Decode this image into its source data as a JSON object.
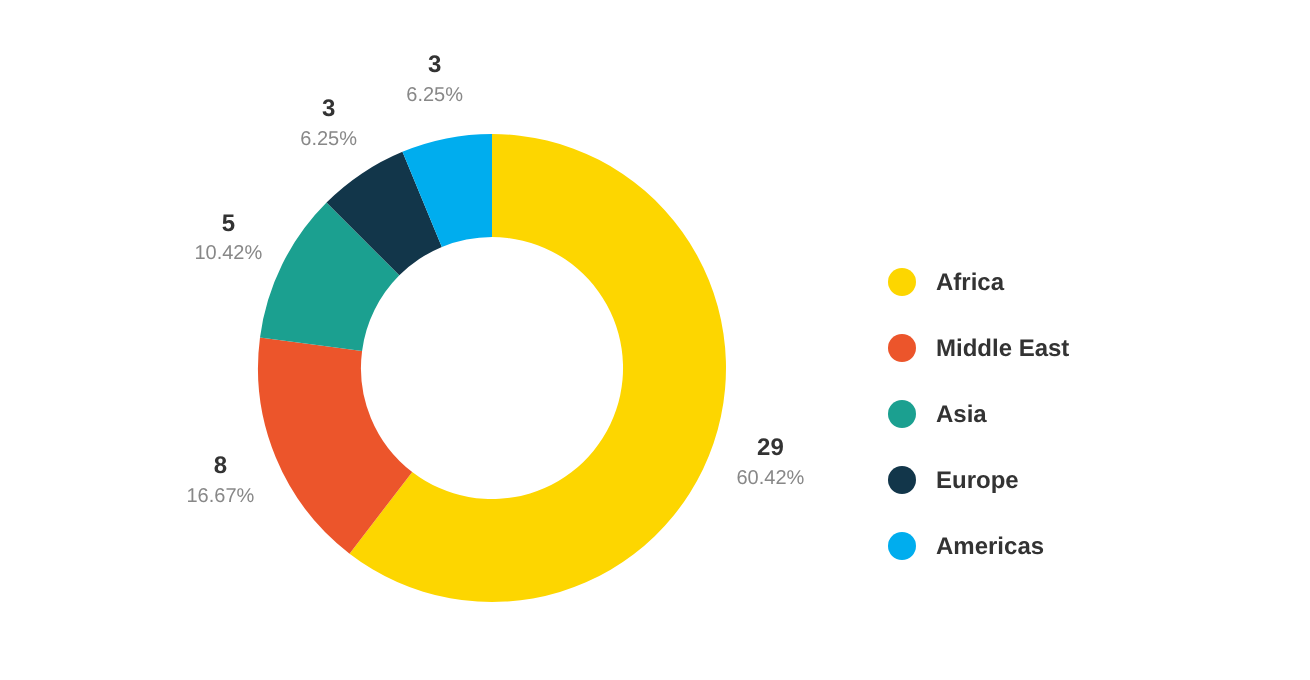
{
  "chart_data": {
    "type": "donut",
    "categories": [
      "Africa",
      "Middle East",
      "Asia",
      "Europe",
      "Americas"
    ],
    "values": [
      29,
      8,
      5,
      3,
      3
    ],
    "colors": [
      "#fdd600",
      "#ec552b",
      "#1ba090",
      "#12364a",
      "#00adee"
    ],
    "value_labels": [
      "29\n60.42%",
      "8\n16.67%",
      "5\n10.42%",
      "3\n6.25%",
      "3\n6.25%"
    ],
    "legend": "right"
  }
}
